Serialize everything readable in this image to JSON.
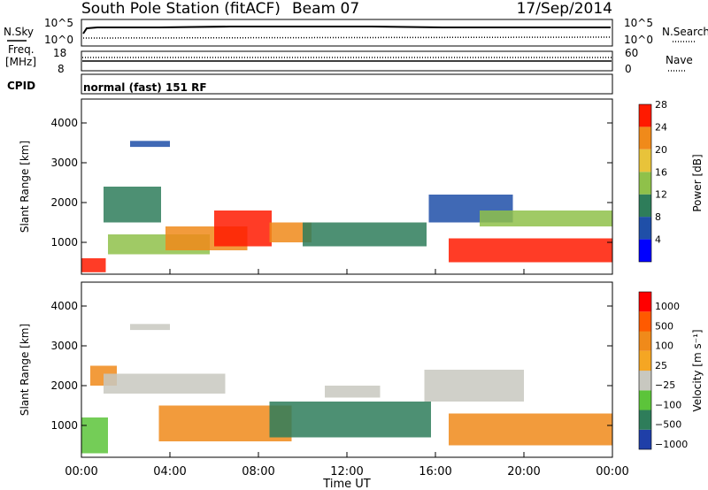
{
  "header": {
    "title": "South Pole Station (fitACF)",
    "beam": "Beam 07",
    "date": "17/Sep/2014"
  },
  "summary_panels": {
    "nsky_label": "N.Sky",
    "nsearch_label": "N.Search",
    "freq_label_1": "Freq.",
    "freq_label_2": "[MHz]",
    "nave_label": "Nave",
    "cpid_label": "CPID",
    "noise_ticks_left": [
      "10^5",
      "10^0"
    ],
    "noise_ticks_right": [
      "10^5",
      "10^0"
    ],
    "freq_ticks": [
      "18",
      "8"
    ],
    "nave_ticks": [
      "60",
      "0"
    ],
    "cpid_text": "normal (fast) 151 RF"
  },
  "chart_data": [
    {
      "type": "heatmap",
      "name": "power",
      "ylabel": "Slant Range [km]",
      "yticks": [
        1000,
        2000,
        3000,
        4000
      ],
      "ylim": [
        200,
        4600
      ],
      "xlim_hours": [
        0,
        24
      ],
      "colorbar_label": "Power [dB]",
      "colorbar_ticks": [
        "4",
        "8",
        "12",
        "16",
        "20",
        "24",
        "28"
      ],
      "colorbar_colors": [
        "#0000ff",
        "#1f4fa8",
        "#2e7d5a",
        "#8fc14a",
        "#e8c33a",
        "#f08a1a",
        "#ff1a00"
      ],
      "regions": [
        {
          "x": [
            0.0,
            1.1
          ],
          "y": [
            250,
            600
          ],
          "color": "#ff1a00"
        },
        {
          "x": [
            1.0,
            3.6
          ],
          "y": [
            1500,
            2400
          ],
          "color": "#2e7d5a"
        },
        {
          "x": [
            2.2,
            4.0
          ],
          "y": [
            3400,
            3550
          ],
          "color": "#1f4fa8"
        },
        {
          "x": [
            1.2,
            5.8
          ],
          "y": [
            700,
            1200
          ],
          "color": "#8fc14a"
        },
        {
          "x": [
            3.8,
            7.5
          ],
          "y": [
            800,
            1400
          ],
          "color": "#f08a1a"
        },
        {
          "x": [
            6.0,
            8.6
          ],
          "y": [
            900,
            1800
          ],
          "color": "#ff1a00"
        },
        {
          "x": [
            8.5,
            10.4
          ],
          "y": [
            1000,
            1500
          ],
          "color": "#f08a1a"
        },
        {
          "x": [
            10.0,
            15.6
          ],
          "y": [
            900,
            1500
          ],
          "color": "#2e7d5a"
        },
        {
          "x": [
            15.7,
            19.5
          ],
          "y": [
            1500,
            2200
          ],
          "color": "#1f4fa8"
        },
        {
          "x": [
            16.6,
            24.0
          ],
          "y": [
            500,
            1100
          ],
          "color": "#ff1a00"
        },
        {
          "x": [
            18.0,
            24.0
          ],
          "y": [
            1400,
            1800
          ],
          "color": "#8fc14a"
        }
      ]
    },
    {
      "type": "heatmap",
      "name": "velocity",
      "ylabel": "Slant Range [km]",
      "yticks": [
        1000,
        2000,
        3000,
        4000
      ],
      "ylim": [
        200,
        4600
      ],
      "xlim_hours": [
        0,
        24
      ],
      "xticks": [
        "00:00",
        "04:00",
        "08:00",
        "12:00",
        "16:00",
        "20:00",
        "00:00"
      ],
      "xlabel": "Time UT",
      "colorbar_label": "Velocity [m s⁻¹]",
      "colorbar_ticks": [
        "1000",
        "500",
        "100",
        "25",
        "−25",
        "−100",
        "−500",
        "−1000"
      ],
      "colorbar_colors": [
        "#1f3fa8",
        "#2e7d5a",
        "#5cc43a",
        "#c8c8c0",
        "#f5a623",
        "#f08a1a",
        "#ff5a00",
        "#ff0000"
      ],
      "regions": [
        {
          "x": [
            0.0,
            1.2
          ],
          "y": [
            300,
            1200
          ],
          "color": "#5cc43a"
        },
        {
          "x": [
            0.4,
            1.6
          ],
          "y": [
            2000,
            2500
          ],
          "color": "#f08a1a"
        },
        {
          "x": [
            1.0,
            6.5
          ],
          "y": [
            1800,
            2300
          ],
          "color": "#c8c8c0"
        },
        {
          "x": [
            2.2,
            4.0
          ],
          "y": [
            3400,
            3550
          ],
          "color": "#c8c8c0"
        },
        {
          "x": [
            3.5,
            9.5
          ],
          "y": [
            600,
            1500
          ],
          "color": "#f08a1a"
        },
        {
          "x": [
            8.5,
            15.8
          ],
          "y": [
            700,
            1600
          ],
          "color": "#2e7d5a"
        },
        {
          "x": [
            11.0,
            13.5
          ],
          "y": [
            1700,
            2000
          ],
          "color": "#c8c8c0"
        },
        {
          "x": [
            15.5,
            20.0
          ],
          "y": [
            1600,
            2400
          ],
          "color": "#c8c8c0"
        },
        {
          "x": [
            16.6,
            24.0
          ],
          "y": [
            500,
            1300
          ],
          "color": "#f08a1a"
        }
      ]
    }
  ]
}
